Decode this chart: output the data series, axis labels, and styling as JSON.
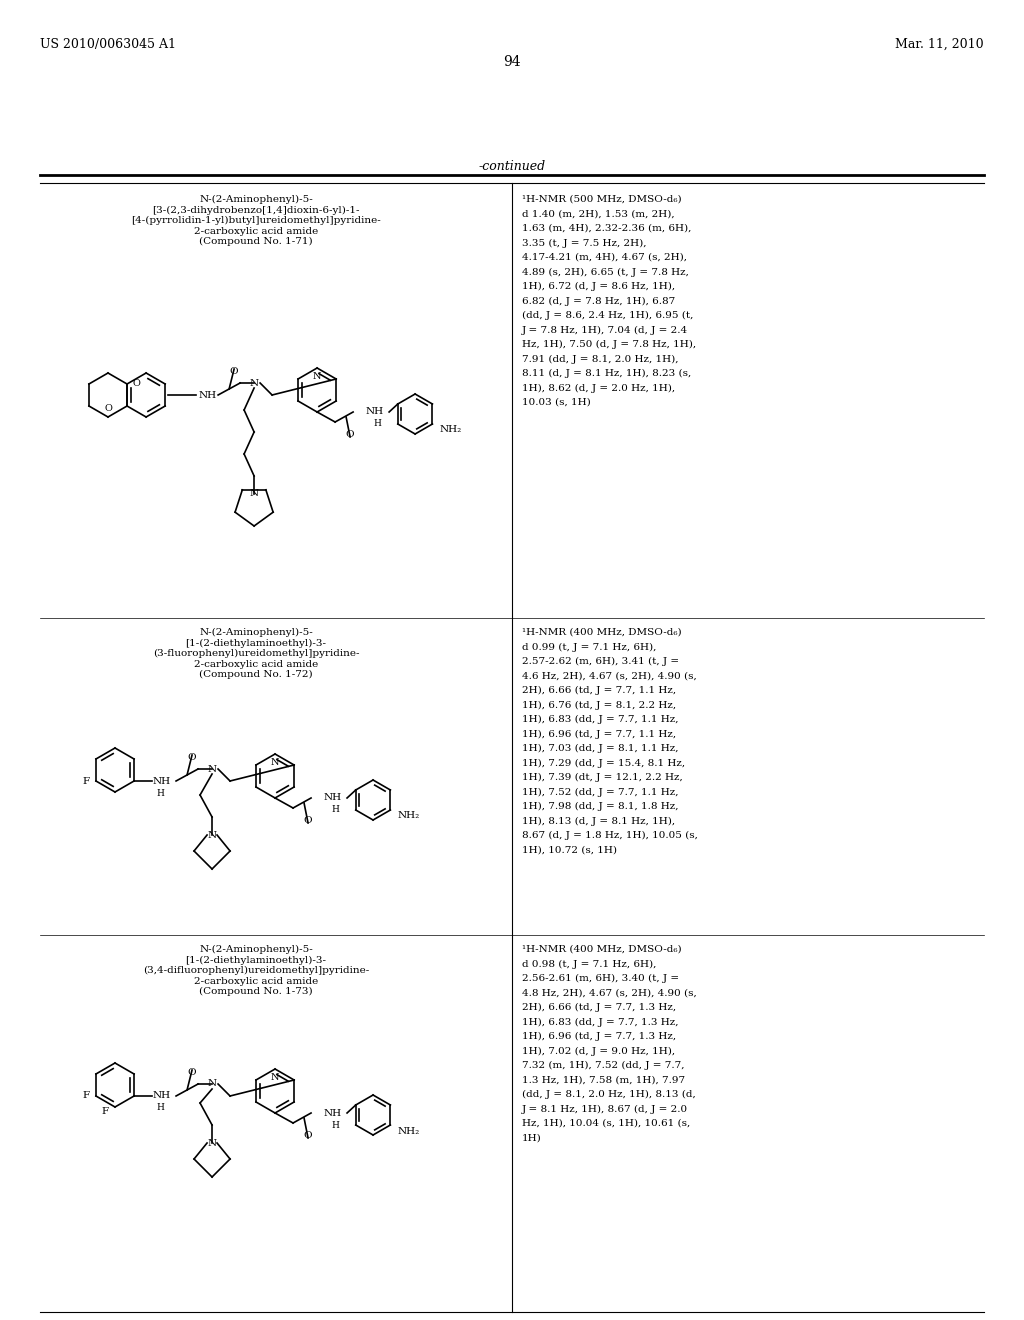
{
  "page_left_header": "US 2010/0063045 A1",
  "page_right_header": "Mar. 11, 2010",
  "page_number": "94",
  "continued": "-continued",
  "bg_color": "#ffffff",
  "compounds": [
    {
      "name": "N-(2-Aminophenyl)-5-\n[3-(2,3-dihydrobenzo[1,4]dioxin-6-yl)-1-\n[4-(pyrrolidin-1-yl)butyl]ureidomethyl]pyridine-\n2-carboxylic acid amide\n(Compound No. 1-71)",
      "nmr": "1H-NMR (500 MHz, DMSO-d6)\nd 1.40 (m, 2H), 1.53 (m, 2H),\n1.63 (m, 4H), 2.32-2.36 (m, 6H),\n3.35 (t, J = 7.5 Hz, 2H),\n4.17-4.21 (m, 4H), 4.67 (s, 2H),\n4.89 (s, 2H), 6.65 (t, J = 7.8 Hz,\n1H), 6.72 (d, J = 8.6 Hz, 1H),\n6.82 (d, J = 7.8 Hz, 1H), 6.87\n(dd, J = 8.6, 2.4 Hz, 1H), 6.95 (t,\nJ = 7.8 Hz, 1H), 7.04 (d, J = 2.4\nHz, 1H), 7.50 (d, J = 7.8 Hz, 1H),\n7.91 (dd, J = 8.1, 2.0 Hz, 1H),\n8.11 (d, J = 8.1 Hz, 1H), 8.23 (s,\n1H), 8.62 (d, J = 2.0 Hz, 1H),\n10.03 (s, 1H)"
    },
    {
      "name": "N-(2-Aminophenyl)-5-\n[1-(2-diethylaminoethyl)-3-\n(3-fluorophenyl)ureidomethyl]pyridine-\n2-carboxylic acid amide\n(Compound No. 1-72)",
      "nmr": "1H-NMR (400 MHz, DMSO-d6)\nd 0.99 (t, J = 7.1 Hz, 6H),\n2.57-2.62 (m, 6H), 3.41 (t, J =\n4.6 Hz, 2H), 4.67 (s, 2H), 4.90 (s,\n2H), 6.66 (td, J = 7.7, 1.1 Hz,\n1H), 6.76 (td, J = 8.1, 2.2 Hz,\n1H), 6.83 (dd, J = 7.7, 1.1 Hz,\n1H), 6.96 (td, J = 7.7, 1.1 Hz,\n1H), 7.03 (dd, J = 8.1, 1.1 Hz,\n1H), 7.29 (dd, J = 15.4, 8.1 Hz,\n1H), 7.39 (dt, J = 12.1, 2.2 Hz,\n1H), 7.52 (dd, J = 7.7, 1.1 Hz,\n1H), 7.98 (dd, J = 8.1, 1.8 Hz,\n1H), 8.13 (d, J = 8.1 Hz, 1H),\n8.67 (d, J = 1.8 Hz, 1H), 10.05 (s,\n1H), 10.72 (s, 1H)"
    },
    {
      "name": "N-(2-Aminophenyl)-5-\n[1-(2-diethylaminoethyl)-3-\n(3,4-difluorophenyl)ureidomethyl]pyridine-\n2-carboxylic acid amide\n(Compound No. 1-73)",
      "nmr": "1H-NMR (400 MHz, DMSO-d6)\nd 0.98 (t, J = 7.1 Hz, 6H),\n2.56-2.61 (m, 6H), 3.40 (t, J =\n4.8 Hz, 2H), 4.67 (s, 2H), 4.90 (s,\n2H), 6.66 (td, J = 7.7, 1.3 Hz,\n1H), 6.83 (dd, J = 7.7, 1.3 Hz,\n1H), 6.96 (td, J = 7.7, 1.3 Hz,\n1H), 7.02 (d, J = 9.0 Hz, 1H),\n7.32 (m, 1H), 7.52 (dd, J = 7.7,\n1.3 Hz, 1H), 7.58 (m, 1H), 7.97\n(dd, J = 8.1, 2.0 Hz, 1H), 8.13 (d,\nJ = 8.1 Hz, 1H), 8.67 (d, J = 2.0\nHz, 1H), 10.04 (s, 1H), 10.61 (s,\n1H)"
    }
  ]
}
